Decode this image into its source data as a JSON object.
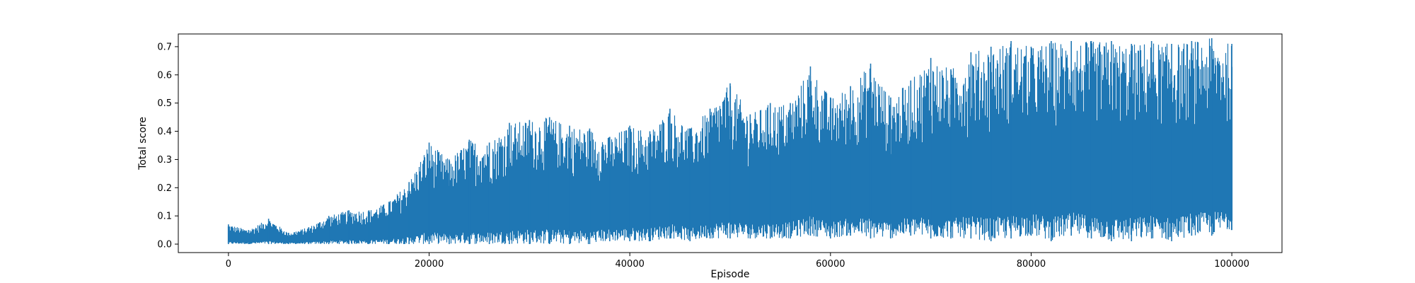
{
  "chart_data": {
    "type": "line",
    "title": "",
    "xlabel": "Episode",
    "ylabel": "Total score",
    "xlim": [
      -5000,
      105000
    ],
    "ylim": [
      -0.03,
      0.745
    ],
    "xticks": [
      0,
      20000,
      40000,
      60000,
      80000,
      100000
    ],
    "xtick_labels": [
      "0",
      "20000",
      "40000",
      "60000",
      "80000",
      "100000"
    ],
    "yticks": [
      0.0,
      0.1,
      0.2,
      0.3,
      0.4,
      0.5,
      0.6,
      0.7
    ],
    "ytick_labels": [
      "0.0",
      "0.1",
      "0.2",
      "0.3",
      "0.4",
      "0.5",
      "0.6",
      "0.7"
    ],
    "legend": "none",
    "grid": false,
    "series": [
      {
        "name": "Total score",
        "color": "#1f77b4",
        "envelope_note": "dense per-episode scores; per-bin min/max",
        "x": [
          0,
          2000,
          4000,
          6000,
          8000,
          10000,
          12000,
          14000,
          16000,
          18000,
          20000,
          22000,
          24000,
          26000,
          28000,
          30000,
          32000,
          34000,
          36000,
          38000,
          40000,
          42000,
          44000,
          46000,
          48000,
          50000,
          52000,
          54000,
          56000,
          58000,
          60000,
          62000,
          64000,
          66000,
          68000,
          70000,
          72000,
          74000,
          76000,
          78000,
          80000,
          82000,
          84000,
          86000,
          88000,
          90000,
          92000,
          94000,
          96000,
          98000,
          100000
        ],
        "max": [
          0.07,
          0.05,
          0.09,
          0.04,
          0.06,
          0.1,
          0.12,
          0.12,
          0.15,
          0.22,
          0.36,
          0.3,
          0.37,
          0.36,
          0.43,
          0.44,
          0.45,
          0.42,
          0.41,
          0.38,
          0.42,
          0.4,
          0.48,
          0.41,
          0.48,
          0.57,
          0.46,
          0.5,
          0.5,
          0.63,
          0.52,
          0.56,
          0.64,
          0.52,
          0.58,
          0.66,
          0.62,
          0.68,
          0.7,
          0.72,
          0.7,
          0.72,
          0.72,
          0.72,
          0.72,
          0.71,
          0.72,
          0.71,
          0.72,
          0.73,
          0.71
        ],
        "min": [
          0.0,
          0.0,
          0.0,
          0.0,
          0.0,
          0.0,
          0.0,
          0.0,
          0.0,
          0.0,
          0.0,
          0.0,
          0.0,
          0.0,
          0.0,
          0.0,
          0.0,
          0.0,
          0.0,
          0.01,
          0.01,
          0.01,
          0.02,
          0.01,
          0.02,
          0.02,
          0.02,
          0.02,
          0.02,
          0.03,
          0.02,
          0.03,
          0.02,
          0.02,
          0.03,
          0.02,
          0.02,
          0.02,
          0.01,
          0.02,
          0.03,
          0.01,
          0.03,
          0.02,
          0.01,
          0.01,
          0.02,
          0.01,
          0.03,
          0.03,
          0.05
        ]
      }
    ]
  }
}
